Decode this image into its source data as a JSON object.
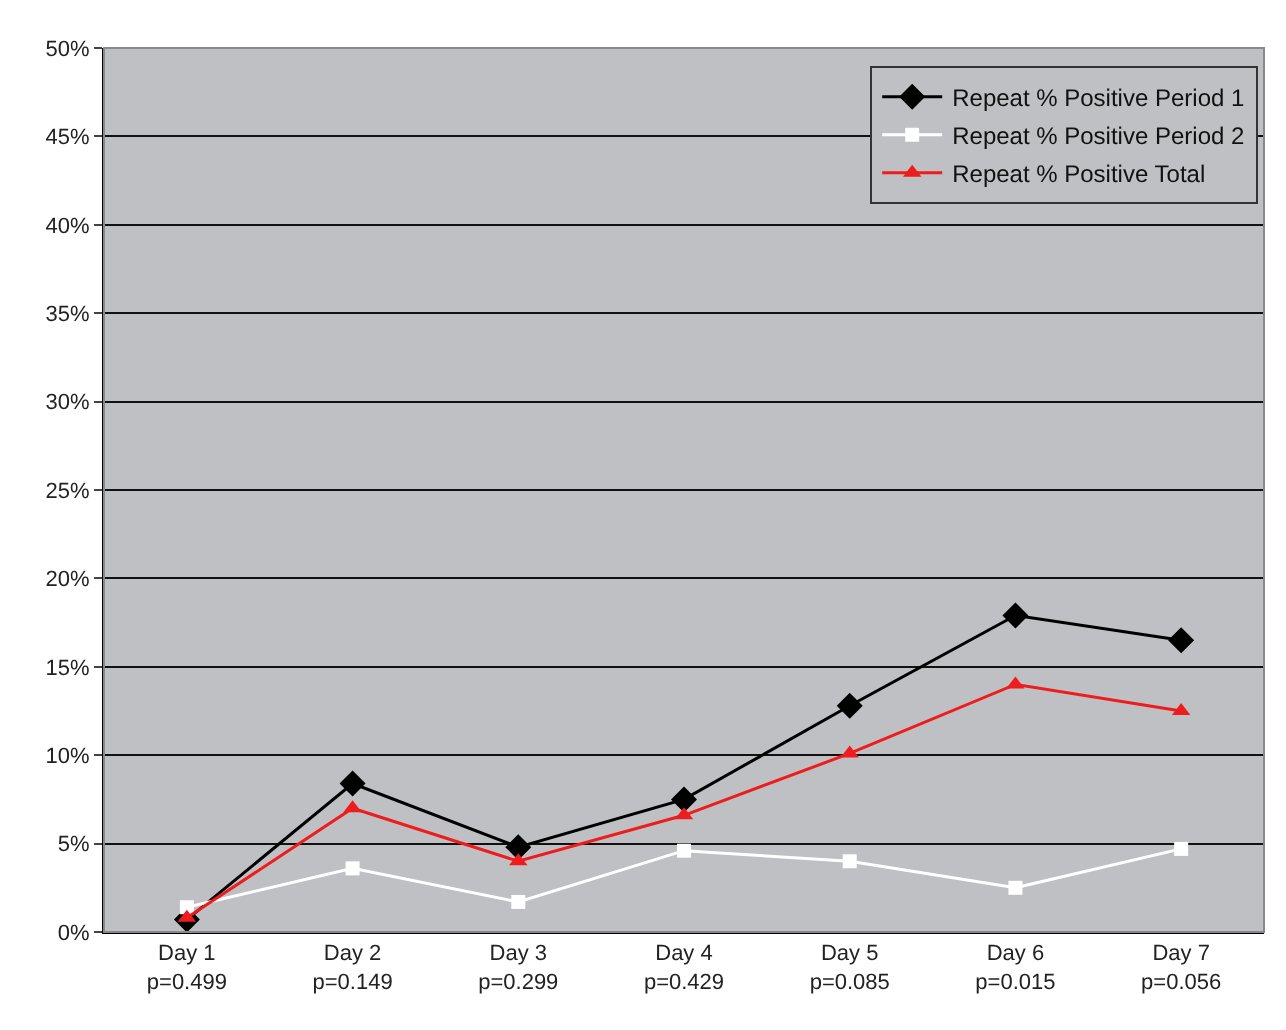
{
  "chart_data": {
    "type": "line",
    "categories": [
      "Day 1\np=0.499",
      "Day 2\np=0.149",
      "Day 3\np=0.299",
      "Day 4\np=0.429",
      "Day 5\np=0.085",
      "Day 6\np=0.015",
      "Day 7\np=0.056"
    ],
    "series": [
      {
        "name": "Repeat % Positive Period 1",
        "color": "#000000",
        "marker": "diamond",
        "values": [
          0.7,
          8.4,
          4.8,
          7.5,
          12.8,
          17.9,
          16.5
        ]
      },
      {
        "name": "Repeat % Positive Period 2",
        "color": "#ffffff",
        "marker": "square",
        "values": [
          1.4,
          3.6,
          1.7,
          4.6,
          4.0,
          2.5,
          4.7
        ]
      },
      {
        "name": "Repeat % Positive Total",
        "color": "#ee1c1c",
        "marker": "triangle",
        "values": [
          0.8,
          7.0,
          4.0,
          6.6,
          10.1,
          14.0,
          12.5
        ]
      }
    ],
    "ylim": [
      0,
      50
    ],
    "yticks": [
      {
        "value": 0,
        "label": "0%"
      },
      {
        "value": 5,
        "label": "5%"
      },
      {
        "value": 10,
        "label": "10%"
      },
      {
        "value": 15,
        "label": "15%"
      },
      {
        "value": 20,
        "label": "20%"
      },
      {
        "value": 25,
        "label": "25%"
      },
      {
        "value": 30,
        "label": "30%"
      },
      {
        "value": 35,
        "label": "35%"
      },
      {
        "value": 40,
        "label": "40%"
      },
      {
        "value": 45,
        "label": "45%"
      },
      {
        "value": 50,
        "label": "50%"
      }
    ],
    "grid": "y",
    "legend": "top right",
    "line_style": "solid"
  }
}
